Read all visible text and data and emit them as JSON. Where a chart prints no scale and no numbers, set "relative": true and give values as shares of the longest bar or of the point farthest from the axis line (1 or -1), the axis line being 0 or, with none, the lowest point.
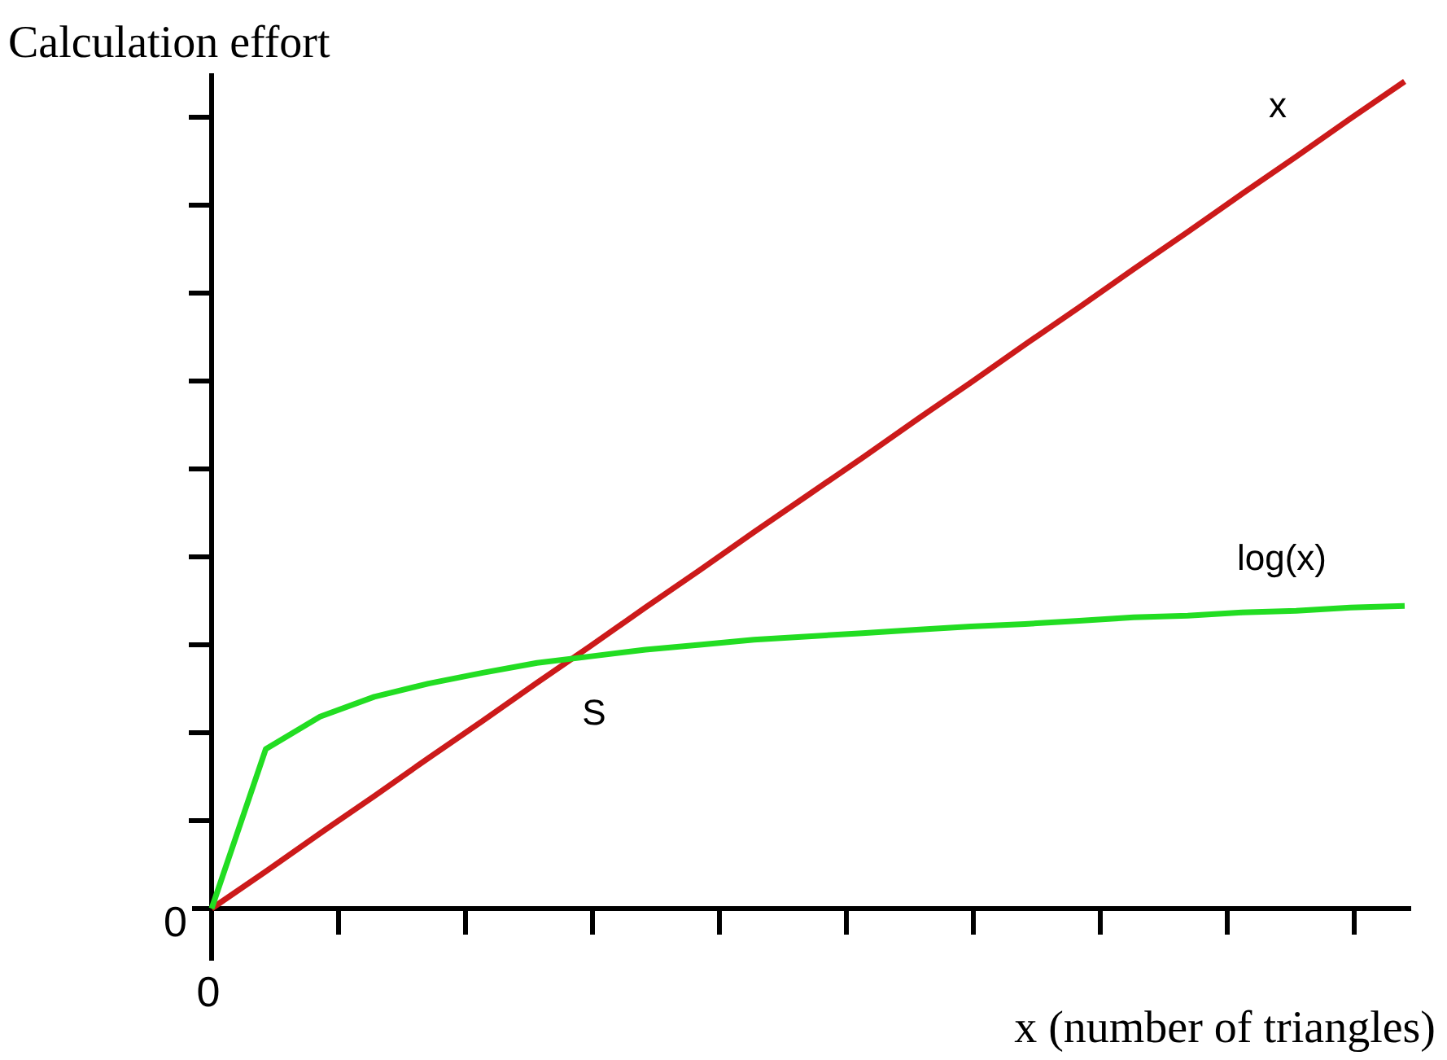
{
  "chart_data": {
    "type": "line",
    "relative": true,
    "title": "Calculation effort",
    "xlabel": "x (number of triangles)",
    "categories": [
      null,
      null,
      null,
      null,
      null,
      null,
      null,
      null,
      null,
      null,
      null,
      null,
      null,
      null,
      null,
      null,
      null,
      null,
      null,
      null,
      null,
      null,
      null
    ],
    "series": [
      {
        "name": "x",
        "color": "#cc1a1a",
        "values": [
          0,
          0.045,
          0.091,
          0.136,
          0.182,
          0.227,
          0.273,
          0.318,
          0.364,
          0.409,
          0.455,
          0.5,
          0.545,
          0.591,
          0.636,
          0.682,
          0.727,
          0.773,
          0.818,
          0.864,
          0.909,
          0.955,
          1
        ]
      },
      {
        "name": "log(x)",
        "color": "#22dd22",
        "values": [
          0,
          0.193,
          0.232,
          0.256,
          0.272,
          0.285,
          0.297,
          0.305,
          0.313,
          0.319,
          0.325,
          0.329,
          0.333,
          0.337,
          0.341,
          0.344,
          0.348,
          0.352,
          0.354,
          0.358,
          0.36,
          0.364,
          0.366
        ]
      }
    ],
    "annotations": [
      "0",
      "0",
      "S"
    ],
    "grid": false,
    "marker": "none",
    "line_style": "solid"
  }
}
